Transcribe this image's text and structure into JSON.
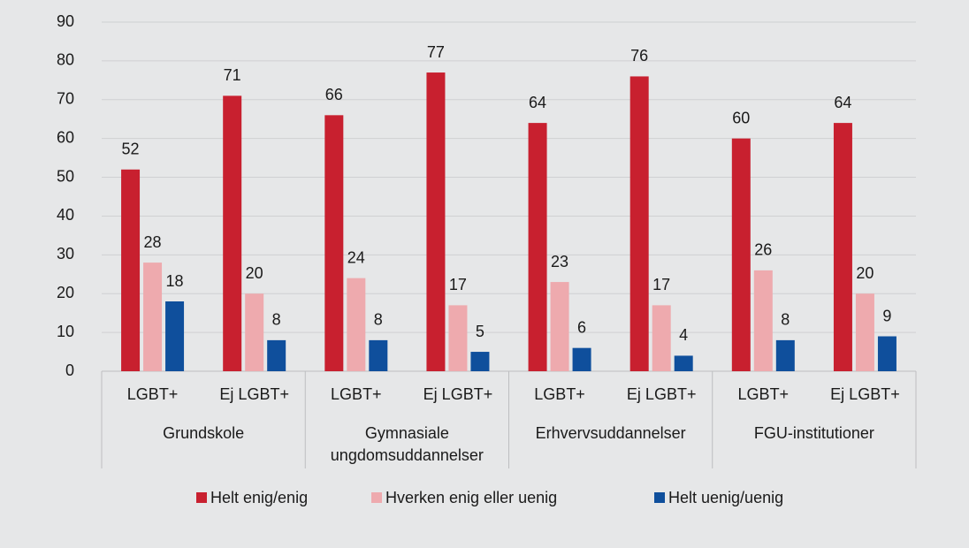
{
  "chart_data": {
    "type": "bar",
    "groups": [
      {
        "name": "Grundskole",
        "categories": [
          "LGBT+",
          "Ej LGBT+"
        ]
      },
      {
        "name": "Gymnasiale ungdomsuddannelser",
        "categories": [
          "LGBT+",
          "Ej LGBT+"
        ]
      },
      {
        "name": "Erhvervsuddannelser",
        "categories": [
          "LGBT+",
          "Ej LGBT+"
        ]
      },
      {
        "name": "FGU-institutioner",
        "categories": [
          "LGBT+",
          "Ej LGBT+"
        ]
      }
    ],
    "series": [
      {
        "name": "Helt enig/enig",
        "color": "#c8202f",
        "values": [
          52,
          71,
          66,
          77,
          64,
          76,
          60,
          64
        ]
      },
      {
        "name": "Hverken enig eller uenig",
        "color": "#eeaaae",
        "values": [
          28,
          20,
          24,
          17,
          23,
          17,
          26,
          20
        ]
      },
      {
        "name": "Helt uenig/uenig",
        "color": "#0f4f9c",
        "values": [
          18,
          8,
          8,
          5,
          6,
          4,
          8,
          9
        ]
      }
    ],
    "ylim": [
      0,
      90
    ],
    "yticks": [
      0,
      10,
      20,
      30,
      40,
      50,
      60,
      70,
      80,
      90
    ],
    "grid": true,
    "legend": "bottom"
  }
}
